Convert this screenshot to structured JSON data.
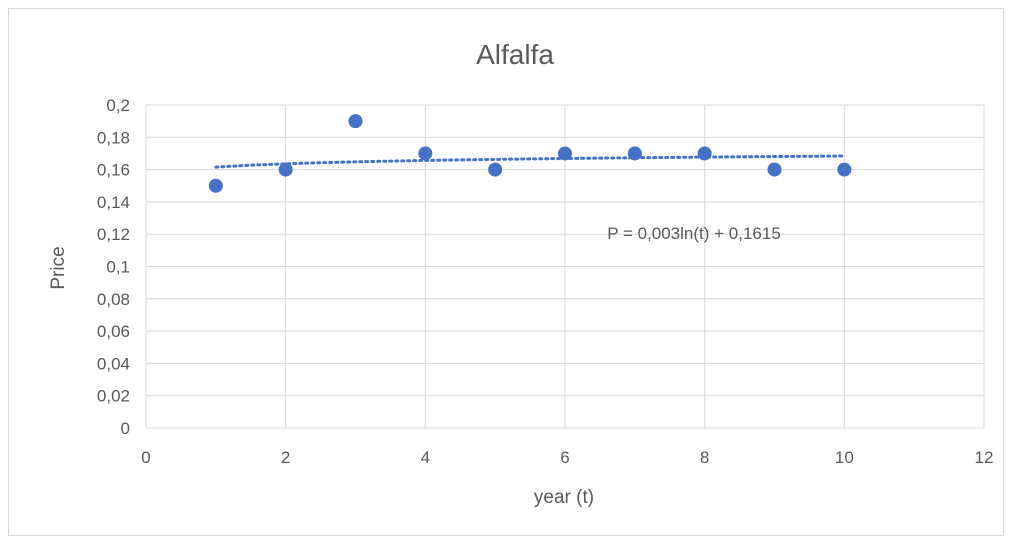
{
  "chart_data": {
    "type": "scatter",
    "title": "Alfalfa",
    "xlabel": "year (t)",
    "ylabel": "Price",
    "xlim": [
      0,
      12
    ],
    "ylim": [
      0,
      0.2
    ],
    "x_ticks": [
      0,
      2,
      4,
      6,
      8,
      10,
      12
    ],
    "x_tick_labels": [
      "0",
      "2",
      "4",
      "6",
      "8",
      "10",
      "12"
    ],
    "y_ticks": [
      0,
      0.02,
      0.04,
      0.06,
      0.08,
      0.1,
      0.12,
      0.14,
      0.16,
      0.18,
      0.2
    ],
    "y_tick_labels": [
      "0",
      "0,02",
      "0,04",
      "0,06",
      "0,08",
      "0,1",
      "0,12",
      "0,14",
      "0,16",
      "0,18",
      "0,2"
    ],
    "grid": true,
    "legend": "none",
    "series": [
      {
        "x": [
          1,
          2,
          3,
          4,
          5,
          6,
          7,
          8,
          9,
          10
        ],
        "y": [
          0.15,
          0.16,
          0.19,
          0.17,
          0.16,
          0.17,
          0.17,
          0.17,
          0.16,
          0.16
        ],
        "color": "#4472c4"
      }
    ],
    "trendline": {
      "type": "logarithmic",
      "a": 0.003,
      "b": 0.1615,
      "x_range": [
        1,
        10
      ],
      "style": "dotted",
      "color": "#4472c4",
      "equation": "P = 0,003ln(t) + 0,1615"
    }
  },
  "colors": {
    "marker": "#4472c4",
    "grid": "#d9d9d9",
    "text": "#595959"
  }
}
